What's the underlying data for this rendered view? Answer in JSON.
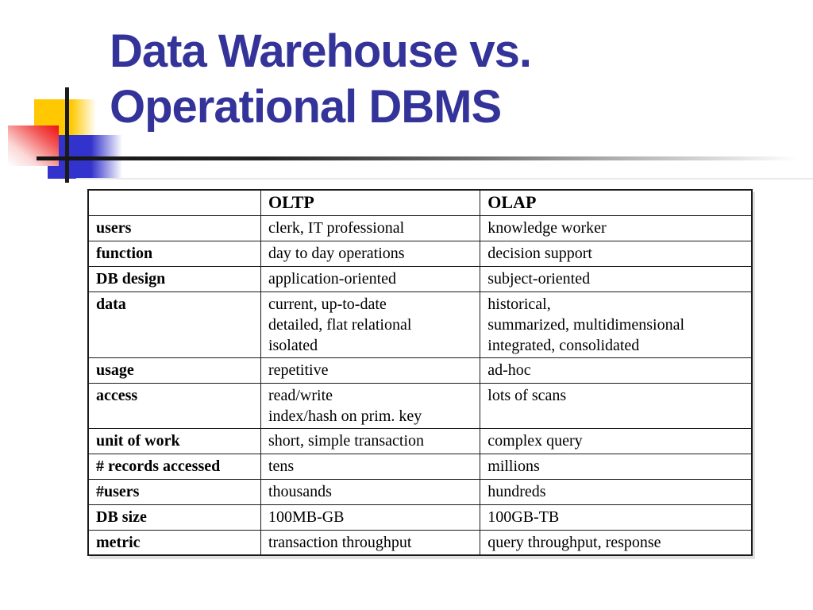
{
  "slide": {
    "title": "Data Warehouse vs. Operational DBMS"
  },
  "colors": {
    "title": "#333399",
    "square-yellow": "#FFC800",
    "square-red": "#EE1111",
    "square-blue": "#3232CC",
    "line": "#1B1B1B",
    "table-border": "#1B1B1B"
  },
  "table": {
    "columns": [
      "",
      "OLTP",
      "OLAP"
    ],
    "rows": [
      {
        "label": "users",
        "oltp": [
          "clerk, IT professional"
        ],
        "olap": [
          "knowledge worker"
        ]
      },
      {
        "label": "function",
        "oltp": [
          "day to day operations"
        ],
        "olap": [
          "decision support"
        ]
      },
      {
        "label": "DB design",
        "oltp": [
          "application-oriented"
        ],
        "olap": [
          "subject-oriented"
        ]
      },
      {
        "label": "data",
        "oltp": [
          "current, up-to-date",
          "detailed, flat relational",
          "isolated"
        ],
        "olap": [
          "historical,",
          "summarized, multidimensional",
          "integrated, consolidated"
        ]
      },
      {
        "label": "usage",
        "oltp": [
          "repetitive"
        ],
        "olap": [
          "ad-hoc"
        ]
      },
      {
        "label": "access",
        "oltp": [
          "read/write",
          "index/hash on prim. key"
        ],
        "olap": [
          "lots of scans"
        ]
      },
      {
        "label": "unit of work",
        "oltp": [
          "short, simple transaction"
        ],
        "olap": [
          "complex query"
        ]
      },
      {
        "label": "# records accessed",
        "oltp": [
          "tens"
        ],
        "olap": [
          "millions"
        ]
      },
      {
        "label": "#users",
        "oltp": [
          "thousands"
        ],
        "olap": [
          "hundreds"
        ]
      },
      {
        "label": "DB size",
        "oltp": [
          "100MB-GB"
        ],
        "olap": [
          "100GB-TB"
        ]
      },
      {
        "label": "metric",
        "oltp": [
          "transaction throughput"
        ],
        "olap": [
          "query throughput, response"
        ]
      }
    ]
  }
}
